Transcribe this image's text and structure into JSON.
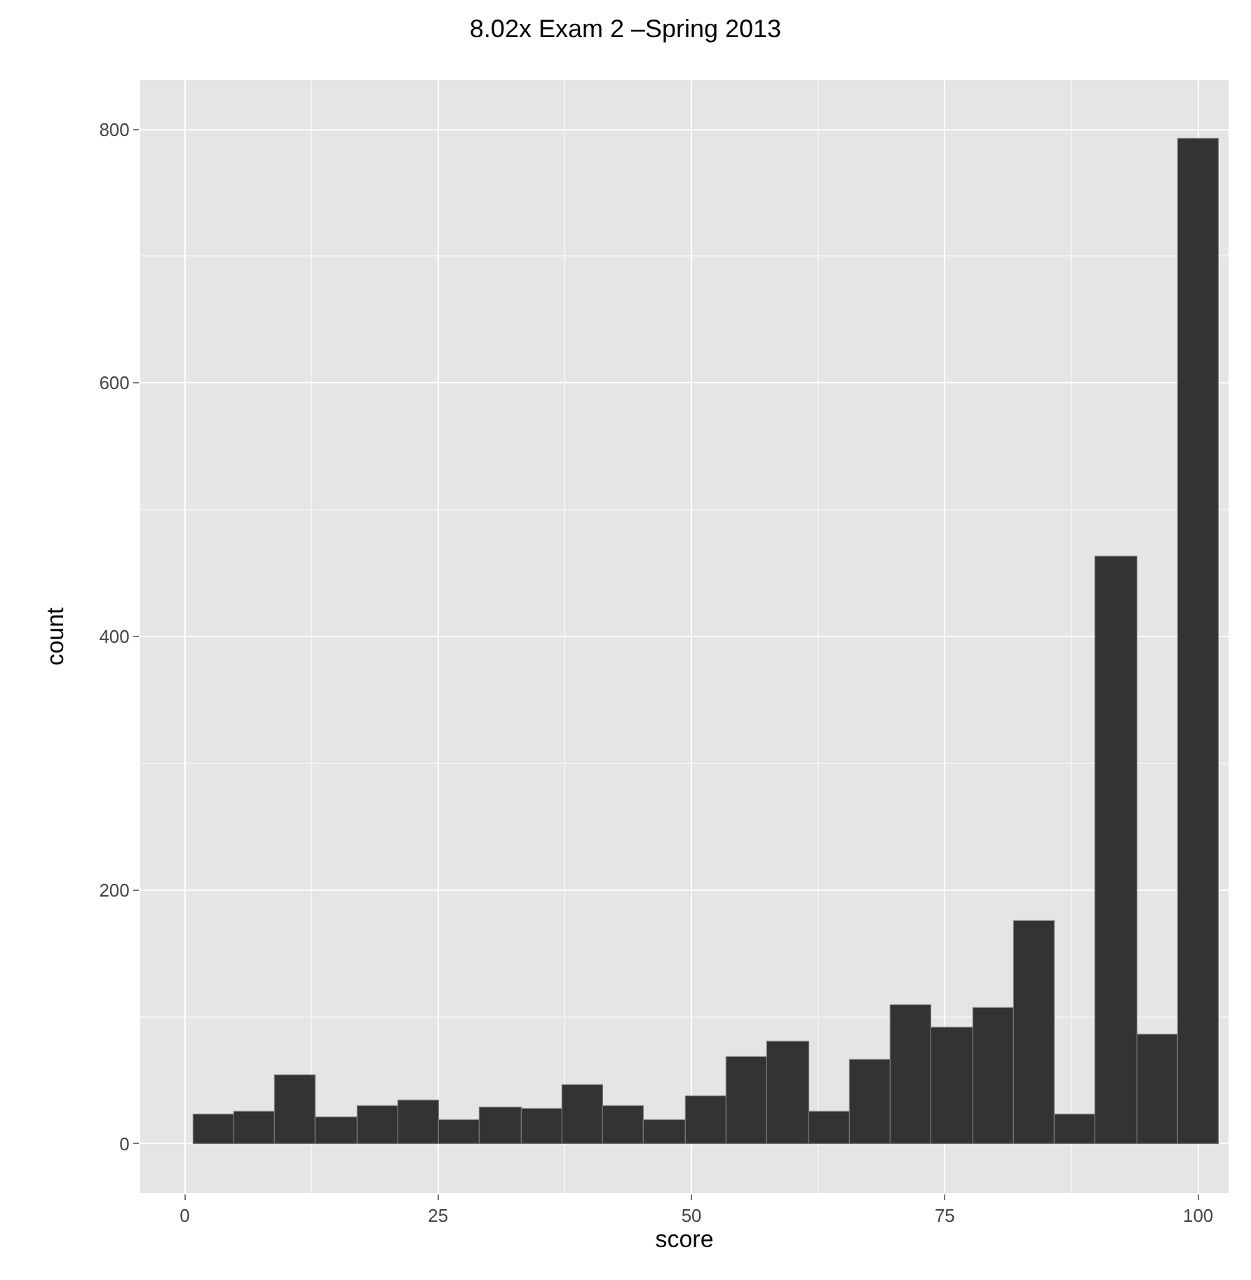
{
  "chart_data": {
    "type": "histogram",
    "title": "8.02x Exam 2 –Spring 2013",
    "xlabel": "score",
    "ylabel": "count",
    "bins": [
      0.8,
      4.85,
      8.9,
      12.95,
      17.0,
      21.05,
      25.1,
      29.15,
      33.2,
      37.25,
      41.3,
      45.35,
      49.4,
      53.45,
      57.5,
      61.55,
      65.6,
      69.65,
      73.7,
      77.75,
      81.8,
      85.85,
      89.9,
      93.95,
      98.0,
      102.05
    ],
    "values": [
      23,
      25,
      54,
      21,
      30,
      34,
      19,
      29,
      27,
      46,
      30,
      19,
      37,
      68,
      80,
      25,
      66,
      109,
      91,
      107,
      176,
      23,
      463,
      86,
      793
    ],
    "color": "#333333",
    "xlim": [
      -4.4,
      103
    ],
    "ylim": [
      -39,
      839
    ],
    "xticks": [
      0,
      25,
      50,
      75,
      100
    ],
    "yticks": [
      0,
      200,
      400,
      600,
      800
    ],
    "grid": true
  }
}
